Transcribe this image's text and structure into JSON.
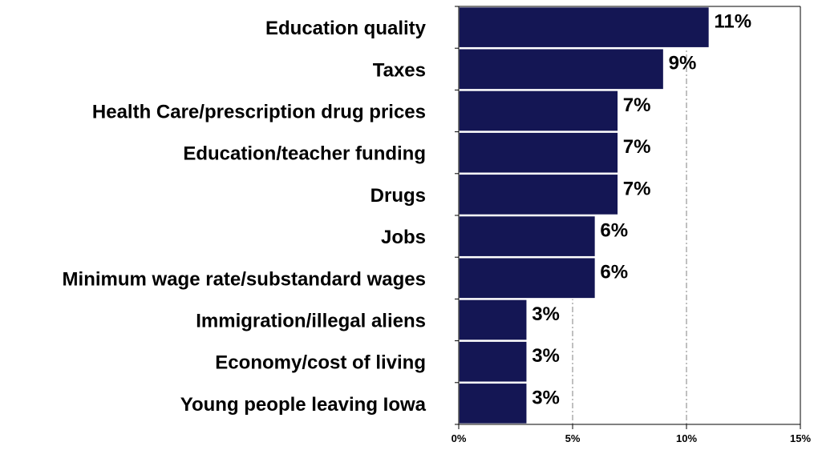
{
  "chart_data": {
    "type": "bar",
    "orientation": "horizontal",
    "categories": [
      "Education quality",
      "Taxes",
      "Health Care/prescription drug prices",
      "Education/teacher funding",
      "Drugs",
      "Jobs",
      "Minimum wage rate/substandard wages",
      "Immigration/illegal aliens",
      "Economy/cost of living",
      "Young people leaving Iowa"
    ],
    "values": [
      11,
      9,
      7,
      7,
      7,
      6,
      6,
      3,
      3,
      3
    ],
    "value_labels": [
      "11%",
      "9%",
      "7%",
      "7%",
      "7%",
      "6%",
      "6%",
      "3%",
      "3%",
      "3%"
    ],
    "title": "",
    "xlabel": "",
    "ylabel": "",
    "xlim": [
      0,
      15
    ],
    "x_ticks": [
      0,
      5,
      10,
      15
    ],
    "x_tick_labels": [
      "0%",
      "5%",
      "10%",
      "15%"
    ],
    "grid": "vertical dash-dot lines at 5% and 10%",
    "legend": "none",
    "colors": {
      "bar_fill": "#141654",
      "bar_outline": "#ffffff",
      "axis": "#000000",
      "grid": "#808080",
      "text": "#000000"
    }
  }
}
